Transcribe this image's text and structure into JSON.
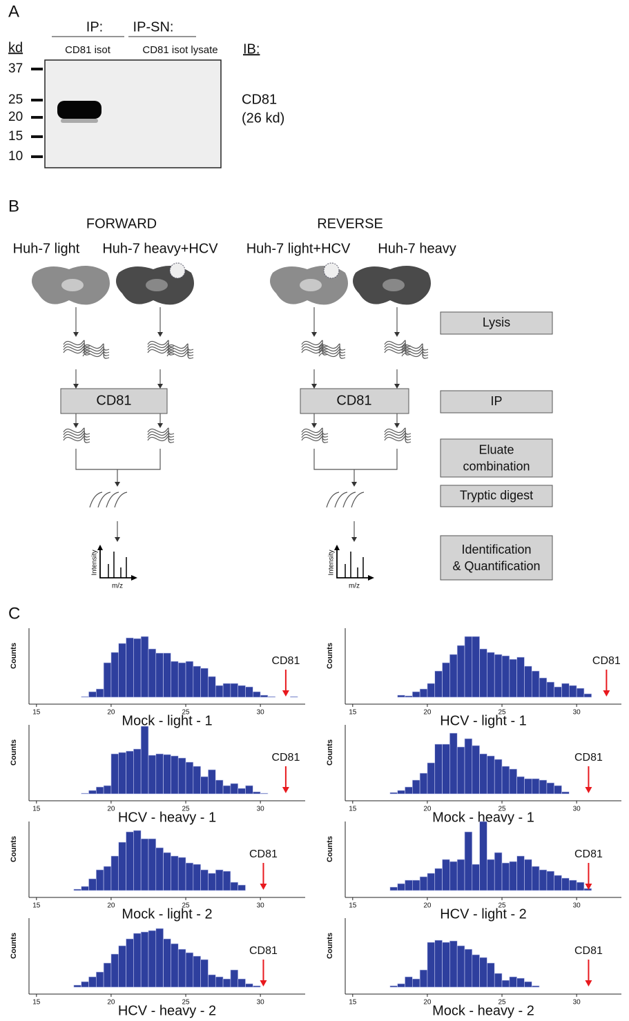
{
  "panel_a": {
    "label": "A",
    "ip": "IP:",
    "ip_sn": "IP-SN:",
    "lane_ip": "CD81 isot",
    "lane_ipsn": "CD81 isot lysate",
    "kd": "kd",
    "ib": "IB:",
    "markers": [
      37,
      25,
      20,
      15,
      10
    ],
    "target": "CD81",
    "target_size": "(26 kd)"
  },
  "panel_b": {
    "label": "B",
    "forward": "FORWARD",
    "reverse": "REVERSE",
    "samples": [
      "Huh-7 light",
      "Huh-7 heavy+HCV",
      "Huh-7 light+HCV",
      "Huh-7 heavy"
    ],
    "ip_box": "CD81",
    "steps": [
      "Lysis",
      "IP",
      "Eluate\ncombination",
      "Tryptic digest",
      "Identification\n& Quantification"
    ],
    "intensity": "Intensity",
    "mz": "m/z"
  },
  "panel_c": {
    "label": "C"
  },
  "chart_data": [
    {
      "type": "histogram",
      "title": "Mock - light - 1",
      "ylabel": "Counts",
      "color": "#2e3f9e",
      "xlim": [
        14.5,
        33
      ],
      "ylim": [
        0,
        100
      ],
      "xticks": [
        15,
        20,
        25,
        30
      ],
      "bins": [
        17.5,
        18,
        18.5,
        19,
        19.5,
        20,
        20.5,
        21,
        21.5,
        22,
        22.5,
        23,
        23.5,
        24,
        24.5,
        25,
        25.5,
        26,
        26.5,
        27,
        27.5,
        28,
        28.5,
        29,
        29.5,
        30,
        30.5,
        31,
        31.5,
        32,
        32.5
      ],
      "counts": [
        0,
        1,
        8,
        12,
        50,
        65,
        78,
        86,
        85,
        88,
        70,
        64,
        64,
        52,
        50,
        52,
        45,
        42,
        30,
        17,
        20,
        20,
        17,
        15,
        8,
        3,
        1,
        0,
        0,
        1
      ],
      "annotation": {
        "text": "CD81",
        "x": 31.7,
        "color": "#e8191e"
      }
    },
    {
      "type": "histogram",
      "title": "HCV - light - 1",
      "ylabel": "Counts",
      "color": "#2e3f9e",
      "xlim": [
        14.5,
        33
      ],
      "ylim": [
        0,
        100
      ],
      "xticks": [
        15,
        20,
        25,
        30
      ],
      "bins": [
        17.5,
        18,
        18.5,
        19,
        19.5,
        20,
        20.5,
        21,
        21.5,
        22,
        22.5,
        23,
        23.5,
        24,
        24.5,
        25,
        25.5,
        26,
        26.5,
        27,
        27.5,
        28,
        28.5,
        29,
        29.5,
        30,
        30.5,
        31,
        31.5,
        32,
        32.5
      ],
      "counts": [
        0,
        3,
        2,
        8,
        12,
        20,
        38,
        50,
        62,
        75,
        88,
        88,
        70,
        65,
        62,
        60,
        55,
        58,
        45,
        38,
        28,
        22,
        15,
        20,
        17,
        13,
        5,
        0,
        0,
        0
      ],
      "annotation": {
        "text": "CD81",
        "x": 32.0,
        "color": "#e8191e"
      }
    },
    {
      "type": "histogram",
      "title": "HCV - heavy - 1",
      "ylabel": "Counts",
      "color": "#2e3f9e",
      "xlim": [
        14.5,
        33
      ],
      "ylim": [
        0,
        100
      ],
      "xticks": [
        15,
        20,
        25,
        30
      ],
      "bins": [
        17.5,
        18,
        18.5,
        19,
        19.5,
        20,
        20.5,
        21,
        21.5,
        22,
        22.5,
        23,
        23.5,
        24,
        24.5,
        25,
        25.5,
        26,
        26.5,
        27,
        27.5,
        28,
        28.5,
        29,
        29.5,
        30,
        30.5,
        31,
        31.5,
        32,
        32.5
      ],
      "counts": [
        0,
        1,
        5,
        10,
        12,
        58,
        60,
        62,
        65,
        98,
        56,
        58,
        57,
        55,
        52,
        46,
        40,
        25,
        35,
        20,
        12,
        15,
        8,
        12,
        3,
        1,
        0,
        0,
        0,
        0
      ],
      "annotation": {
        "text": "CD81",
        "x": 31.7,
        "color": "#e8191e"
      }
    },
    {
      "type": "histogram",
      "title": "Mock - heavy - 1",
      "ylabel": "Counts",
      "color": "#2e3f9e",
      "xlim": [
        14.5,
        33
      ],
      "ylim": [
        0,
        100
      ],
      "xticks": [
        15,
        20,
        25,
        30
      ],
      "bins": [
        17.5,
        18,
        18.5,
        19,
        19.5,
        20,
        20.5,
        21,
        21.5,
        22,
        22.5,
        23,
        23.5,
        24,
        24.5,
        25,
        25.5,
        26,
        26.5,
        27,
        27.5,
        28,
        28.5,
        29,
        29.5,
        30,
        30.5,
        31,
        31.5,
        32,
        32.5
      ],
      "counts": [
        2,
        5,
        10,
        20,
        30,
        45,
        72,
        72,
        88,
        68,
        80,
        70,
        58,
        55,
        50,
        40,
        36,
        25,
        22,
        22,
        20,
        16,
        12,
        3,
        0,
        0,
        0,
        0,
        0,
        0
      ],
      "annotation": {
        "text": "CD81",
        "x": 30.8,
        "color": "#e8191e"
      }
    },
    {
      "type": "histogram",
      "title": "Mock - light - 2",
      "ylabel": "Counts",
      "color": "#2e3f9e",
      "xlim": [
        14.5,
        33
      ],
      "ylim": [
        0,
        100
      ],
      "xticks": [
        15,
        20,
        25,
        30
      ],
      "bins": [
        17.5,
        18,
        18.5,
        19,
        19.5,
        20,
        20.5,
        21,
        21.5,
        22,
        22.5,
        23,
        23.5,
        24,
        24.5,
        25,
        25.5,
        26,
        26.5,
        27,
        27.5,
        28,
        28.5,
        29,
        29.5,
        30,
        30.5,
        31,
        31.5,
        32,
        32.5
      ],
      "counts": [
        2,
        6,
        17,
        30,
        35,
        50,
        70,
        85,
        87,
        75,
        75,
        62,
        55,
        50,
        48,
        40,
        38,
        30,
        25,
        30,
        28,
        12,
        8,
        0,
        0,
        0,
        0,
        0,
        0,
        0
      ],
      "annotation": {
        "text": "CD81",
        "x": 30.2,
        "color": "#e8191e"
      }
    },
    {
      "type": "histogram",
      "title": "HCV - light - 2",
      "ylabel": "Counts",
      "color": "#2e3f9e",
      "xlim": [
        14.5,
        33
      ],
      "ylim": [
        0,
        100
      ],
      "xticks": [
        15,
        20,
        25,
        30
      ],
      "bins": [
        17.5,
        18,
        18.5,
        19,
        19.5,
        20,
        20.5,
        21,
        21.5,
        22,
        22.5,
        23,
        23.5,
        24,
        24.5,
        25,
        25.5,
        26,
        26.5,
        27,
        27.5,
        28,
        28.5,
        29,
        29.5,
        30,
        30.5,
        31,
        31.5,
        32,
        32.5
      ],
      "counts": [
        5,
        10,
        15,
        15,
        20,
        25,
        32,
        45,
        42,
        45,
        85,
        38,
        100,
        45,
        55,
        40,
        42,
        50,
        45,
        35,
        30,
        28,
        22,
        18,
        15,
        12,
        3,
        0,
        0,
        0
      ],
      "annotation": {
        "text": "CD81",
        "x": 30.8,
        "color": "#e8191e"
      }
    },
    {
      "type": "histogram",
      "title": "HCV - heavy - 2",
      "ylabel": "Counts",
      "color": "#2e3f9e",
      "xlim": [
        14.5,
        33
      ],
      "ylim": [
        0,
        100
      ],
      "xticks": [
        15,
        20,
        25,
        30
      ],
      "bins": [
        17.5,
        18,
        18.5,
        19,
        19.5,
        20,
        20.5,
        21,
        21.5,
        22,
        22.5,
        23,
        23.5,
        24,
        24.5,
        25,
        25.5,
        26,
        26.5,
        27,
        27.5,
        28,
        28.5,
        29,
        29.5,
        30,
        30.5,
        31,
        31.5,
        32,
        32.5
      ],
      "counts": [
        3,
        8,
        15,
        22,
        35,
        48,
        60,
        70,
        78,
        80,
        82,
        85,
        70,
        63,
        55,
        50,
        45,
        40,
        18,
        15,
        12,
        25,
        12,
        5,
        2,
        0,
        0,
        0,
        0,
        0
      ],
      "annotation": {
        "text": "CD81",
        "x": 30.2,
        "color": "#e8191e"
      }
    },
    {
      "type": "histogram",
      "title": "Mock - heavy - 2",
      "ylabel": "Counts",
      "color": "#2e3f9e",
      "xlim": [
        14.5,
        33
      ],
      "ylim": [
        0,
        100
      ],
      "xticks": [
        15,
        20,
        25,
        30
      ],
      "bins": [
        17.5,
        18,
        18.5,
        19,
        19.5,
        20,
        20.5,
        21,
        21.5,
        22,
        22.5,
        23,
        23.5,
        24,
        24.5,
        25,
        25.5,
        26,
        26.5,
        27,
        27.5,
        28,
        28.5,
        29,
        29.5,
        30,
        30.5,
        31,
        31.5,
        32,
        32.5
      ],
      "counts": [
        2,
        5,
        15,
        12,
        25,
        65,
        68,
        65,
        67,
        60,
        55,
        47,
        43,
        35,
        20,
        10,
        15,
        13,
        8,
        2,
        0,
        0,
        0,
        0,
        0,
        0,
        0,
        0,
        0,
        0
      ],
      "annotation": {
        "text": "CD81",
        "x": 30.8,
        "color": "#e8191e"
      }
    }
  ]
}
